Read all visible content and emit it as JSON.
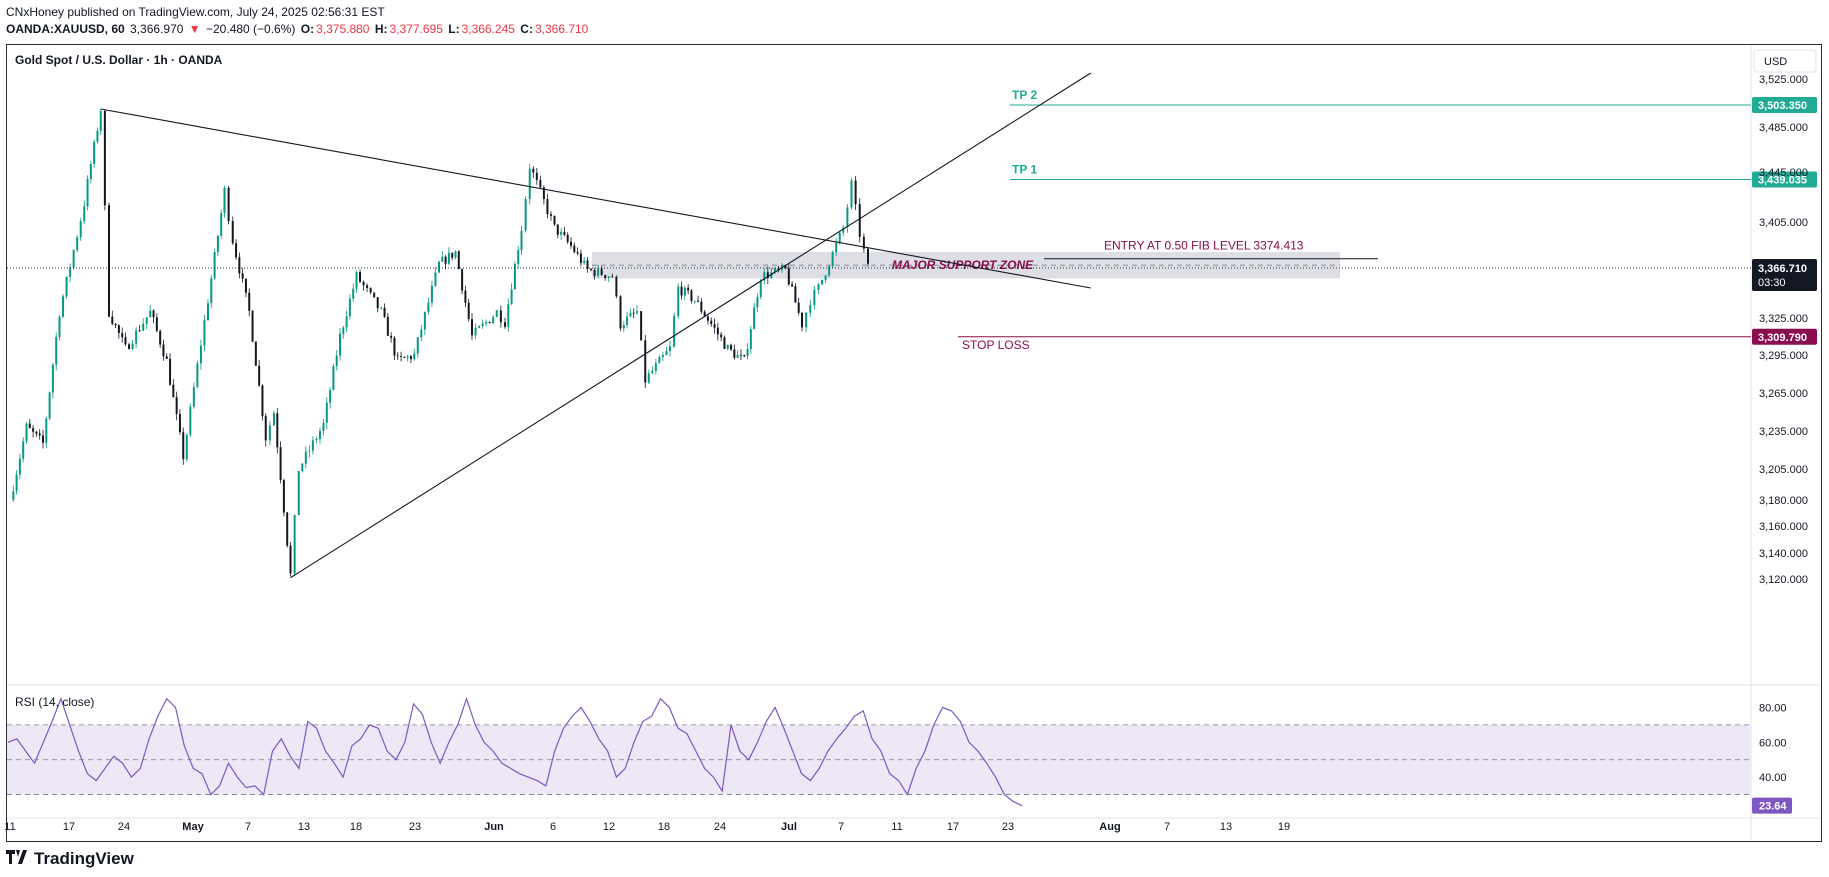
{
  "header": {
    "publisher_line": "CNxHoney published on TradingView.com, July 24, 2025 02:56:31 EST",
    "symbol": "OANDA:XAUUSD, 60",
    "last": "3,366.970",
    "change_arrow": "▼",
    "change": "−20.480 (−0.6%)",
    "o_label": "O:",
    "o": "3,375.880",
    "h_label": "H:",
    "h": "3,377.695",
    "l_label": "L:",
    "l": "3,366.245",
    "c_label": "C:",
    "c": "3,366.710"
  },
  "chart_title": "Gold Spot / U.S. Dollar · 1h · OANDA",
  "currency_label": "USD",
  "footer_brand": "TradingView",
  "colors": {
    "bull": "#089981",
    "bear": "#131722",
    "tp": "#22ab94",
    "stop": "#880e4f",
    "rsi": "#7e57c2",
    "rsi_band": "#ede7f6",
    "zone": "#d1d4dc"
  },
  "chart_data": {
    "type": "candlestick",
    "symbol": "XAUUSD",
    "timeframe": "1h",
    "y_axis_ticks": [
      "3,525.000",
      "3,485.000",
      "3,445.000",
      "3,405.000",
      "3,325.000",
      "3,295.000",
      "3,265.000",
      "3,235.000",
      "3,205.000",
      "3,180.000",
      "3,160.000",
      "3,140.000",
      "3,120.000"
    ],
    "x_axis_ticks": [
      "11",
      "17",
      "24",
      "May",
      "7",
      "13",
      "18",
      "23",
      "Jun",
      "6",
      "12",
      "18",
      "24",
      "Jul",
      "7",
      "11",
      "17",
      "23",
      "Aug",
      "7",
      "13",
      "19"
    ],
    "price_path": [
      {
        "date": "Apr 11",
        "close": 3180
      },
      {
        "date": "Apr 13",
        "close": 3238
      },
      {
        "date": "Apr 15",
        "close": 3225
      },
      {
        "date": "Apr 17",
        "close": 3330
      },
      {
        "date": "Apr 20",
        "close": 3420
      },
      {
        "date": "Apr 22",
        "close": 3500
      },
      {
        "date": "Apr 23",
        "close": 3330
      },
      {
        "date": "Apr 25",
        "close": 3300
      },
      {
        "date": "Apr 28",
        "close": 3330
      },
      {
        "date": "Apr 30",
        "close": 3290
      },
      {
        "date": "May 2",
        "close": 3215
      },
      {
        "date": "May 5",
        "close": 3340
      },
      {
        "date": "May 7",
        "close": 3430
      },
      {
        "date": "May 8",
        "close": 3390
      },
      {
        "date": "May 10",
        "close": 3330
      },
      {
        "date": "May 12",
        "close": 3230
      },
      {
        "date": "May 13",
        "close": 3250
      },
      {
        "date": "May 15",
        "close": 3123
      },
      {
        "date": "May 16",
        "close": 3205
      },
      {
        "date": "May 19",
        "close": 3240
      },
      {
        "date": "May 21",
        "close": 3310
      },
      {
        "date": "May 23",
        "close": 3360
      },
      {
        "date": "May 26",
        "close": 3330
      },
      {
        "date": "May 28",
        "close": 3290
      },
      {
        "date": "May 30",
        "close": 3295
      },
      {
        "date": "Jun 2",
        "close": 3370
      },
      {
        "date": "Jun 4",
        "close": 3380
      },
      {
        "date": "Jun 6",
        "close": 3310
      },
      {
        "date": "Jun 9",
        "close": 3330
      },
      {
        "date": "Jun 10",
        "close": 3322
      },
      {
        "date": "Jun 12",
        "close": 3400
      },
      {
        "date": "Jun 13",
        "close": 3450
      },
      {
        "date": "Jun 16",
        "close": 3400
      },
      {
        "date": "Jun 18",
        "close": 3385
      },
      {
        "date": "Jun 20",
        "close": 3365
      },
      {
        "date": "Jun 23",
        "close": 3360
      },
      {
        "date": "Jun 24",
        "close": 3320
      },
      {
        "date": "Jun 26",
        "close": 3330
      },
      {
        "date": "Jun 27",
        "close": 3275
      },
      {
        "date": "Jun 30",
        "close": 3300
      },
      {
        "date": "Jul 1",
        "close": 3350
      },
      {
        "date": "Jul 3",
        "close": 3340
      },
      {
        "date": "Jul 7",
        "close": 3300
      },
      {
        "date": "Jul 9",
        "close": 3290
      },
      {
        "date": "Jul 11",
        "close": 3360
      },
      {
        "date": "Jul 14",
        "close": 3365
      },
      {
        "date": "Jul 16",
        "close": 3320
      },
      {
        "date": "Jul 17",
        "close": 3340
      },
      {
        "date": "Jul 18",
        "close": 3350
      },
      {
        "date": "Jul 21",
        "close": 3400
      },
      {
        "date": "Jul 22",
        "close": 3435
      },
      {
        "date": "Jul 23",
        "close": 3395
      },
      {
        "date": "Jul 24",
        "close": 3366.71
      }
    ],
    "levels": [
      {
        "name": "TP 2",
        "label": "TP 2",
        "value": 3503.35,
        "price_label": "3,503.350"
      },
      {
        "name": "TP 1",
        "label": "TP 1",
        "value": 3439.035,
        "price_label": "3,439.035"
      },
      {
        "name": "Entry",
        "label": "ENTRY AT 0.50 FIB LEVEL 3374.413",
        "value": 3374.413
      },
      {
        "name": "Stop loss",
        "label": "STOP LOSS",
        "value": 3309.79,
        "price_label": "3,309.790"
      }
    ],
    "zone": {
      "label": "MAJOR SUPPORT ZONE",
      "from": 3358,
      "to": 3380
    },
    "trendlines": [
      {
        "name": "descending resistance",
        "from": {
          "date": "Apr 22",
          "price": 3500
        },
        "to": {
          "date": "Aug 20",
          "price": 3350
        }
      },
      {
        "name": "ascending support",
        "from": {
          "date": "May 15",
          "price": 3121
        },
        "to": {
          "date": "Aug 20",
          "price": 3530
        }
      }
    ],
    "current_price": {
      "value": 3366.71,
      "label": "3,366.710",
      "countdown": "03:30"
    },
    "rsi": {
      "label": "RSI (14, close)",
      "value": 23.64,
      "value_label": "23.64",
      "band": [
        30,
        70
      ],
      "ticks": [
        "80.00",
        "60.00",
        "40.00"
      ],
      "path": [
        60,
        62,
        55,
        48,
        60,
        72,
        85,
        70,
        55,
        42,
        38,
        45,
        52,
        48,
        40,
        45,
        62,
        75,
        85,
        80,
        58,
        45,
        42,
        30,
        35,
        48,
        40,
        34,
        35,
        30,
        55,
        62,
        52,
        45,
        72,
        68,
        55,
        48,
        40,
        58,
        62,
        70,
        68,
        55,
        50,
        60,
        82,
        76,
        60,
        48,
        60,
        70,
        85,
        70,
        60,
        55,
        48,
        45,
        42,
        40,
        38,
        35,
        55,
        68,
        75,
        80,
        72,
        62,
        55,
        40,
        45,
        60,
        72,
        75,
        85,
        80,
        68,
        65,
        55,
        45,
        40,
        32,
        70,
        55,
        50,
        60,
        72,
        80,
        68,
        55,
        42,
        38,
        45,
        55,
        62,
        68,
        75,
        78,
        62,
        55,
        42,
        38,
        30,
        45,
        55,
        70,
        80,
        78,
        72,
        60,
        55,
        48,
        40,
        30,
        26,
        23.64
      ]
    }
  }
}
